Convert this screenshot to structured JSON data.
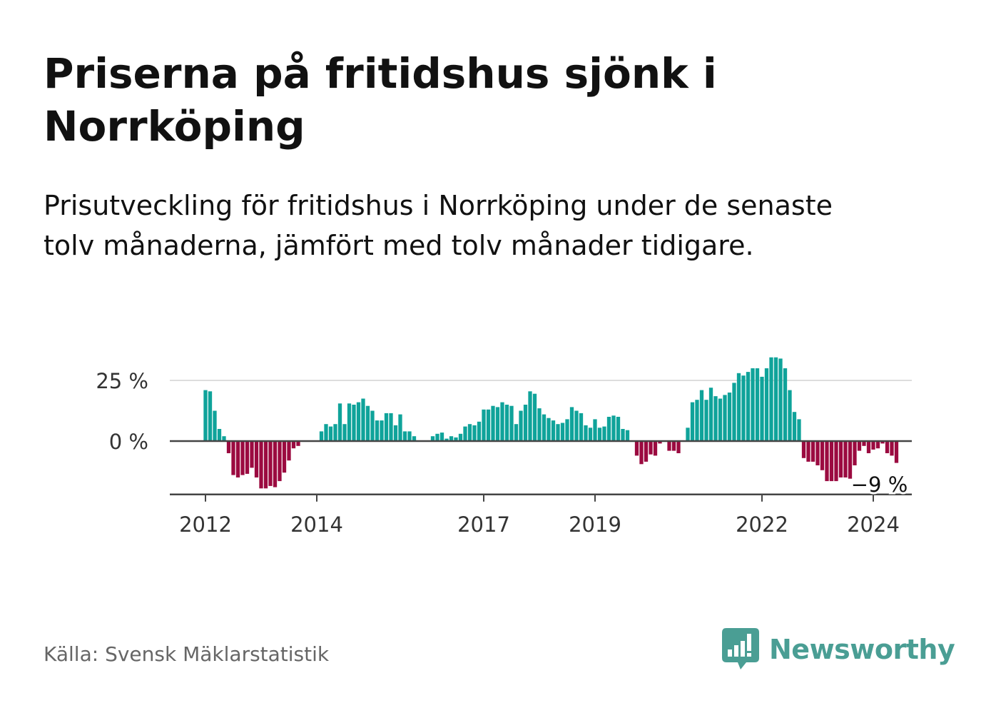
{
  "title": "Priserna på fritidshus sjönk i Norrköping",
  "subtitle": "Prisutveckling för fritidshus i Norrköping under de senaste tolv månaderna, jämfört med tolv månader tidigare.",
  "source": "Källa: Svensk Mäklarstatistik",
  "brand": {
    "name": "Newsworthy",
    "icon": "newsworthy-logo-icon",
    "color": "#4a9e94"
  },
  "colors": {
    "positive": "#0fa39a",
    "negative": "#9b0a40",
    "zero_line": "#444444",
    "gridline": "#dddddd"
  },
  "chart_data": {
    "type": "bar",
    "title": "Priserna på fritidshus sjönk i Norrköping",
    "xlabel": "",
    "ylabel": "",
    "unit": "%",
    "ylim": [
      -22,
      35
    ],
    "yticks": [
      {
        "value": 25,
        "label": "25 %"
      },
      {
        "value": 0,
        "label": "0 %"
      }
    ],
    "start": "2012-01",
    "frequency": "monthly",
    "xticks": [
      {
        "label": "2012",
        "index": 0
      },
      {
        "label": "2014",
        "index": 24
      },
      {
        "label": "2017",
        "index": 60
      },
      {
        "label": "2019",
        "index": 84
      },
      {
        "label": "2022",
        "index": 120
      },
      {
        "label": "2024",
        "index": 144
      }
    ],
    "annotation": {
      "label": "−9 %",
      "index": 145,
      "value": -9
    },
    "values": [
      21,
      20.5,
      12.5,
      5,
      2,
      -5,
      -14,
      -15,
      -14,
      -13.5,
      -11,
      -15,
      -19.5,
      -19.5,
      -18.5,
      -19,
      -16.5,
      -13,
      -8,
      -3,
      -2,
      0,
      0,
      0,
      0,
      4,
      7,
      6,
      7,
      15.5,
      7,
      15.5,
      15,
      16,
      17.5,
      14.5,
      12.5,
      8.5,
      8.5,
      11.5,
      11.5,
      6.5,
      11,
      4,
      4,
      2,
      0,
      0,
      0,
      2,
      3,
      3.5,
      1,
      2,
      1.5,
      3,
      6,
      7,
      6.5,
      8,
      13,
      13,
      14.5,
      14,
      16,
      15,
      14.5,
      7,
      12.5,
      15,
      20.5,
      19.5,
      13.5,
      11,
      9.5,
      8.5,
      7,
      7.5,
      9,
      14,
      12.5,
      11.5,
      6.5,
      5.5,
      9,
      5.5,
      6,
      10,
      10.5,
      10,
      5,
      4.5,
      0,
      -6,
      -9.5,
      -8.5,
      -5.5,
      -6,
      -1,
      0,
      -4,
      -4,
      -5,
      0,
      5.5,
      16,
      17,
      21,
      17,
      22,
      18.5,
      17.5,
      19,
      20,
      24,
      28,
      27,
      28.5,
      30,
      30,
      26.5,
      30,
      34.5,
      34.5,
      34,
      30,
      21,
      12,
      9,
      -7,
      -8.5,
      -8.5,
      -10,
      -12,
      -16.5,
      -16.5,
      -16.5,
      -15,
      -15,
      -15.5,
      -10,
      -4,
      -2,
      -5,
      -3.5,
      -3,
      -1,
      -5,
      -6,
      -9
    ]
  }
}
